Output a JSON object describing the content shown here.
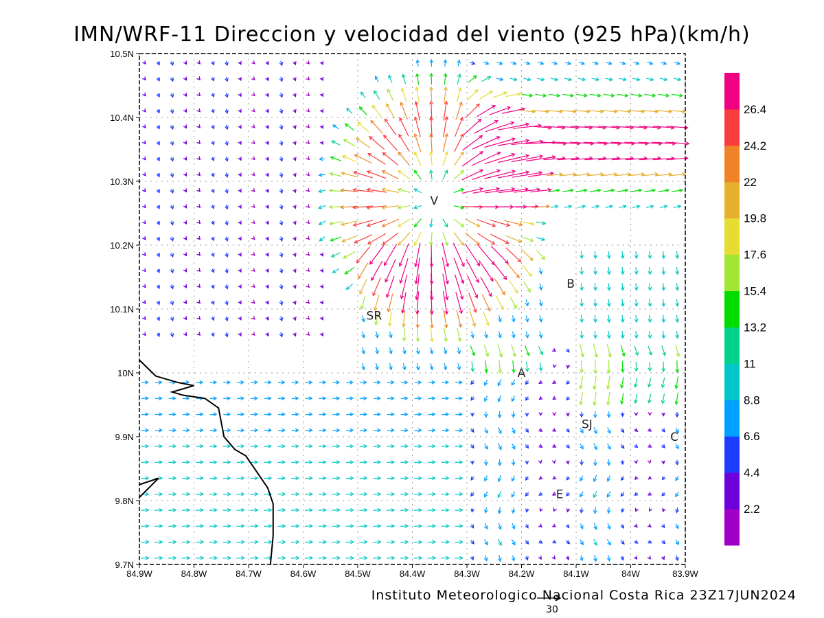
{
  "title": "IMN/WRF-11 Direccion y velocidad del viento (925 hPa)(km/h)",
  "credit": "Instituto Meteorologico Nacional Costa Rica 23Z17JUN2024",
  "reference_vector": {
    "label": "30",
    "speed": 30
  },
  "colors": {
    "coast": "#000000",
    "grid": "#999999",
    "frame": "#000000"
  },
  "chart_data": {
    "type": "vector-field",
    "level": "925 hPa",
    "units": "km/h",
    "valid_time": "23Z17JUN2024",
    "lon_range": [
      -84.9,
      -83.9
    ],
    "lat_range": [
      9.7,
      10.5
    ],
    "x_ticks": [
      "84.9W",
      "84.8W",
      "84.7W",
      "84.6W",
      "84.5W",
      "84.4W",
      "84.3W",
      "84.2W",
      "84.1W",
      "84W",
      "83.9W"
    ],
    "y_ticks": [
      "9.7N",
      "9.8N",
      "9.9N",
      "10N",
      "10.1N",
      "10.2N",
      "10.3N",
      "10.4N",
      "10.5N"
    ],
    "grid": true,
    "colorbar": {
      "levels": [
        "2.2",
        "4.4",
        "6.6",
        "8.8",
        "11",
        "13.2",
        "15.4",
        "17.6",
        "19.8",
        "22",
        "24.2",
        "26.4"
      ],
      "colors": [
        "#a000c8",
        "#6e00dc",
        "#1e3cff",
        "#00a0ff",
        "#00c8c8",
        "#00d28c",
        "#00dc00",
        "#a0e632",
        "#e6dc32",
        "#e6af2d",
        "#f08228",
        "#fa3c3c",
        "#f00082"
      ]
    },
    "stations": [
      {
        "label": "V",
        "lon": -84.36,
        "lat": 10.27
      },
      {
        "label": "SR",
        "lon": -84.47,
        "lat": 10.09
      },
      {
        "label": "B",
        "lon": -84.11,
        "lat": 10.14
      },
      {
        "label": "A",
        "lon": -84.2,
        "lat": 10.0
      },
      {
        "label": "SJ",
        "lon": -84.08,
        "lat": 9.92
      },
      {
        "label": "C",
        "lon": -83.92,
        "lat": 9.9
      },
      {
        "label": "E",
        "lon": -84.13,
        "lat": 9.81
      }
    ],
    "coastline": [
      [
        -84.9,
        10.02
      ],
      [
        -84.87,
        9.995
      ],
      [
        -84.83,
        9.985
      ],
      [
        -84.8,
        9.98
      ],
      [
        -84.82,
        9.975
      ],
      [
        -84.84,
        9.97
      ],
      [
        -84.82,
        9.965
      ],
      [
        -84.78,
        9.96
      ],
      [
        -84.755,
        9.945
      ],
      [
        -84.745,
        9.9
      ],
      [
        -84.725,
        9.88
      ],
      [
        -84.705,
        9.87
      ],
      [
        -84.685,
        9.845
      ],
      [
        -84.665,
        9.82
      ],
      [
        -84.655,
        9.795
      ],
      [
        -84.655,
        9.745
      ],
      [
        -84.66,
        9.7
      ]
    ],
    "coastline_2": [
      [
        -84.9,
        9.825
      ],
      [
        -84.865,
        9.835
      ],
      [
        -84.9,
        9.805
      ]
    ],
    "field_centers": [
      {
        "type": "divergence",
        "lon": -84.36,
        "lat": 10.27,
        "strength": 26
      },
      {
        "type": "jet",
        "lon": -84.05,
        "lat": 10.36,
        "speed": 26,
        "direction": "east"
      }
    ]
  }
}
